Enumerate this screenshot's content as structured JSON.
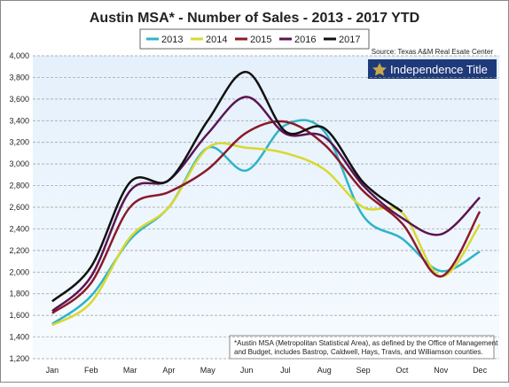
{
  "chart_data": {
    "type": "line",
    "title": "Austin MSA* - Number of Sales - 2013 - 2017 YTD",
    "source": "Source: Texas A&M Real Esate Center",
    "logo": "Independence Title",
    "footnote": [
      "*Austin MSA (Metropolitan Statistical Area), as defined by the Office of Management",
      "and Budget, includes Bastrop, Caldwell, Hays, Travis, and Williamson counties."
    ],
    "categories": [
      "Jan",
      "Feb",
      "Mar",
      "Apr",
      "May",
      "Jun",
      "Jul",
      "Aug",
      "Sep",
      "Oct",
      "Nov",
      "Dec"
    ],
    "series": [
      {
        "name": "2013",
        "color": "#2eb4c8",
        "values": [
          1520,
          1780,
          2300,
          2600,
          3150,
          2940,
          3360,
          3300,
          2520,
          2310,
          2010,
          2190
        ]
      },
      {
        "name": "2014",
        "color": "#d8d830",
        "values": [
          1510,
          1720,
          2320,
          2600,
          3150,
          3150,
          3100,
          2950,
          2600,
          2550,
          1960,
          2440
        ]
      },
      {
        "name": "2015",
        "color": "#8b1a2a",
        "values": [
          1620,
          1900,
          2600,
          2740,
          2950,
          3290,
          3390,
          3180,
          2750,
          2450,
          1960,
          2560
        ]
      },
      {
        "name": "2016",
        "color": "#5c1450",
        "values": [
          1640,
          1960,
          2750,
          2850,
          3280,
          3620,
          3280,
          3250,
          2800,
          2500,
          2350,
          2690
        ]
      },
      {
        "name": "2017",
        "color": "#111111",
        "values": [
          1730,
          2050,
          2830,
          2850,
          3400,
          3850,
          3300,
          3330,
          2830,
          2560,
          null,
          null
        ]
      }
    ],
    "ylim": [
      1200,
      4000
    ],
    "yticks": [
      {
        "value": 1200,
        "label": "1,200"
      },
      {
        "value": 1400,
        "label": "1,400"
      },
      {
        "value": 1600,
        "label": "1,600"
      },
      {
        "value": 1800,
        "label": "1,800"
      },
      {
        "value": 2000,
        "label": "2,000"
      },
      {
        "value": 2200,
        "label": "2,200"
      },
      {
        "value": 2400,
        "label": "2,400"
      },
      {
        "value": 2600,
        "label": "2,600"
      },
      {
        "value": 2800,
        "label": "2,800"
      },
      {
        "value": 3000,
        "label": "3,000"
      },
      {
        "value": 3200,
        "label": "3,200"
      },
      {
        "value": 3400,
        "label": "3,400"
      },
      {
        "value": 3600,
        "label": "3,600"
      },
      {
        "value": 3800,
        "label": "3,800"
      },
      {
        "value": 4000,
        "label": "4,000"
      }
    ],
    "grid": true
  }
}
